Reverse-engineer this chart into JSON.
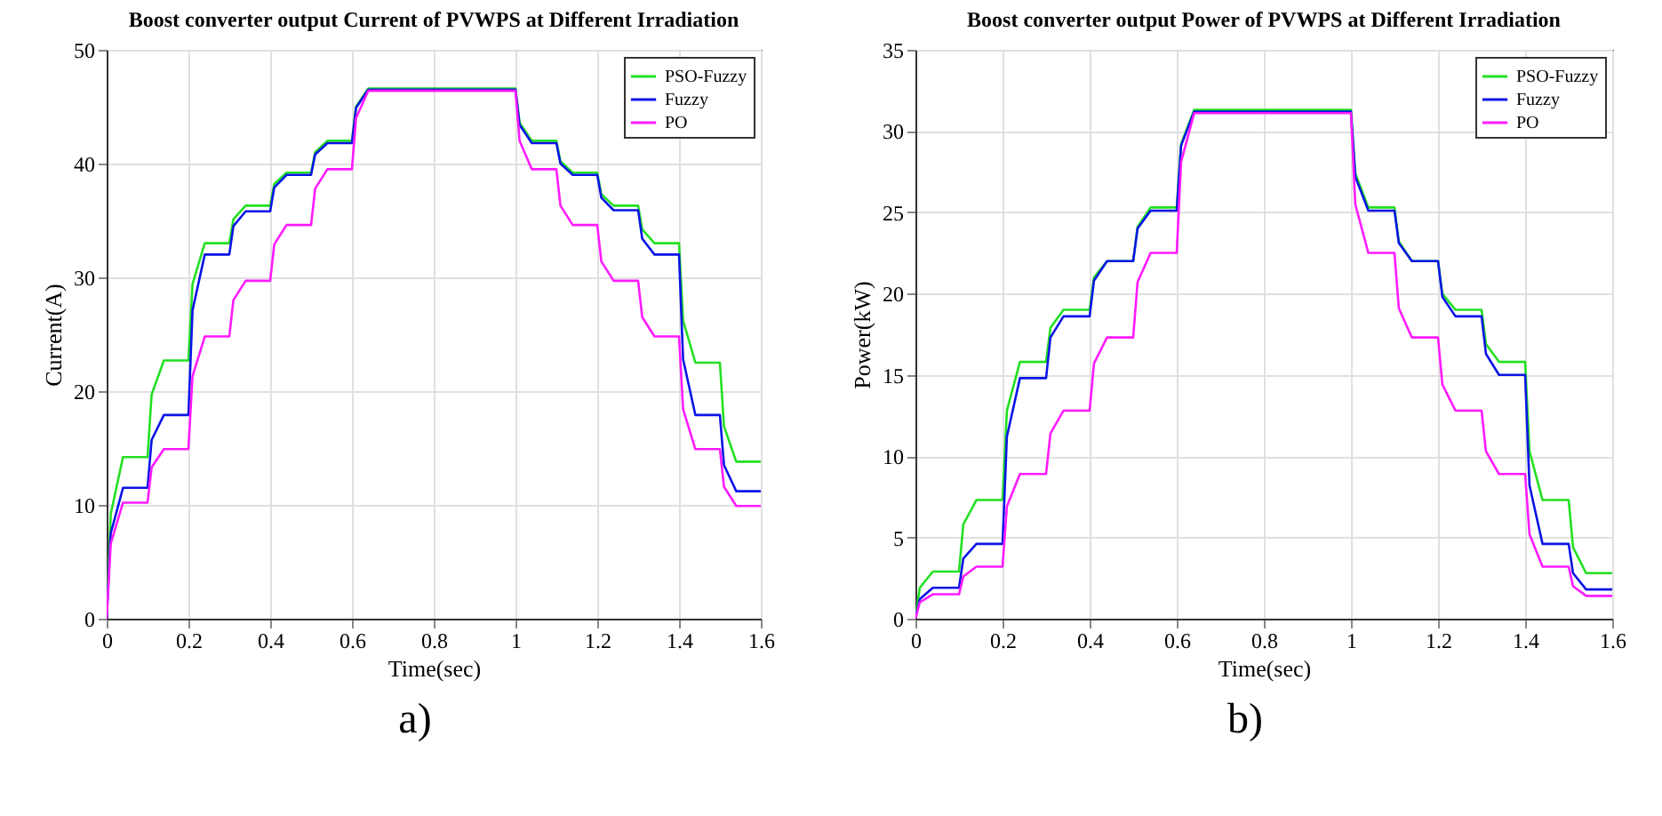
{
  "chart_data": [
    {
      "type": "line",
      "title": "Boost converter output Current of PVWPS at Different Irradiation",
      "xlabel": "Time(sec)",
      "ylabel": "Current(A)",
      "annotations": [
        "a)"
      ],
      "x": [
        0,
        0.01,
        0.04,
        0.1,
        0.11,
        0.14,
        0.2,
        0.21,
        0.24,
        0.3,
        0.31,
        0.34,
        0.4,
        0.41,
        0.44,
        0.5,
        0.51,
        0.54,
        0.6,
        0.61,
        0.64,
        1.0,
        1.01,
        1.04,
        1.1,
        1.11,
        1.14,
        1.2,
        1.21,
        1.24,
        1.3,
        1.31,
        1.34,
        1.4,
        1.41,
        1.44,
        1.5,
        1.51,
        1.54,
        1.6
      ],
      "series": [
        {
          "name": "PSO-Fuzzy",
          "color": "#22e022",
          "values": [
            0,
            9.2,
            14.2,
            14.2,
            19.7,
            22.7,
            22.7,
            29.4,
            33,
            33,
            35.1,
            36.3,
            36.3,
            38.2,
            39.2,
            39.2,
            41,
            42,
            42,
            45,
            46.6,
            46.6,
            43.6,
            42,
            42,
            40.2,
            39.2,
            39.2,
            37.3,
            36.3,
            36.3,
            34.2,
            33,
            33,
            26.2,
            22.5,
            22.5,
            16.9,
            13.8,
            13.8
          ]
        },
        {
          "name": "Fuzzy",
          "color": "#0a14e6",
          "values": [
            0,
            7.5,
            11.5,
            11.5,
            15.7,
            17.9,
            17.9,
            27.1,
            32,
            32,
            34.5,
            35.8,
            35.8,
            37.9,
            39,
            39,
            40.8,
            41.8,
            41.8,
            44.9,
            46.5,
            46.5,
            43.4,
            41.8,
            41.8,
            40,
            39,
            39,
            37,
            35.9,
            35.9,
            33.4,
            32,
            32,
            22.8,
            17.9,
            17.9,
            13.5,
            11.2,
            11.2
          ]
        },
        {
          "name": "PO",
          "color": "#ff1aff",
          "values": [
            0,
            6.6,
            10.2,
            10.2,
            13.3,
            14.9,
            14.9,
            21.3,
            24.8,
            24.8,
            28,
            29.7,
            29.7,
            32.9,
            34.6,
            34.6,
            37.8,
            39.5,
            39.5,
            44,
            46.4,
            46.4,
            42,
            39.5,
            39.5,
            36.3,
            34.6,
            34.6,
            31.4,
            29.7,
            29.7,
            26.5,
            24.8,
            24.8,
            18.4,
            14.9,
            14.9,
            11.6,
            9.9,
            9.9
          ]
        }
      ],
      "xlim": [
        0,
        1.6
      ],
      "xticks": [
        0,
        0.2,
        0.4,
        0.6,
        0.8,
        1,
        1.2,
        1.4,
        1.6
      ],
      "ylim": [
        0,
        50
      ],
      "yticks": [
        0,
        10,
        20,
        30,
        40,
        50
      ],
      "grid": true,
      "legend": "top right"
    },
    {
      "type": "line",
      "title": "Boost converter output Power of PVWPS at Different Irradiation",
      "xlabel": "Time(sec)",
      "ylabel": "Power(kW)",
      "annotations": [
        "b)"
      ],
      "x": [
        0,
        0.01,
        0.04,
        0.1,
        0.11,
        0.14,
        0.2,
        0.21,
        0.24,
        0.3,
        0.31,
        0.34,
        0.4,
        0.41,
        0.44,
        0.5,
        0.51,
        0.54,
        0.6,
        0.61,
        0.64,
        1.0,
        1.01,
        1.04,
        1.1,
        1.11,
        1.14,
        1.2,
        1.21,
        1.24,
        1.3,
        1.31,
        1.34,
        1.4,
        1.41,
        1.44,
        1.5,
        1.51,
        1.54,
        1.6
      ],
      "series": [
        {
          "name": "PSO-Fuzzy",
          "color": "#22e022",
          "values": [
            0,
            1.9,
            2.9,
            2.9,
            5.8,
            7.3,
            7.3,
            12.8,
            15.8,
            15.8,
            17.9,
            19,
            19,
            21,
            22,
            22,
            24.1,
            25.3,
            25.3,
            29.2,
            31.3,
            31.3,
            27.4,
            25.3,
            25.3,
            23.2,
            22,
            22,
            20,
            19,
            19,
            16.9,
            15.8,
            15.8,
            10.3,
            7.3,
            7.3,
            4.4,
            2.8,
            2.8
          ]
        },
        {
          "name": "Fuzzy",
          "color": "#0a14e6",
          "values": [
            0,
            1.2,
            1.9,
            1.9,
            3.7,
            4.6,
            4.6,
            11.2,
            14.8,
            14.8,
            17.3,
            18.6,
            18.6,
            20.8,
            22,
            22,
            24,
            25.1,
            25.1,
            29.1,
            31.2,
            31.2,
            27.2,
            25.1,
            25.1,
            23.1,
            22,
            22,
            19.8,
            18.6,
            18.6,
            16.3,
            15,
            15,
            8.2,
            4.6,
            4.6,
            2.8,
            1.8,
            1.8
          ]
        },
        {
          "name": "PO",
          "color": "#ff1aff",
          "values": [
            0,
            1,
            1.5,
            1.5,
            2.6,
            3.2,
            3.2,
            6.9,
            8.9,
            8.9,
            11.4,
            12.8,
            12.8,
            15.7,
            17.3,
            17.3,
            20.7,
            22.5,
            22.5,
            28.1,
            31.1,
            31.1,
            25.5,
            22.5,
            22.5,
            19.1,
            17.3,
            17.3,
            14.4,
            12.8,
            12.8,
            10.3,
            8.9,
            8.9,
            5.2,
            3.2,
            3.2,
            2,
            1.4,
            1.4
          ]
        }
      ],
      "xlim": [
        0,
        1.6
      ],
      "xticks": [
        0,
        0.2,
        0.4,
        0.6,
        0.8,
        1,
        1.2,
        1.4,
        1.6
      ],
      "ylim": [
        0,
        35
      ],
      "yticks": [
        0,
        5,
        10,
        15,
        20,
        25,
        30,
        35
      ],
      "grid": true,
      "legend": "top right"
    }
  ]
}
